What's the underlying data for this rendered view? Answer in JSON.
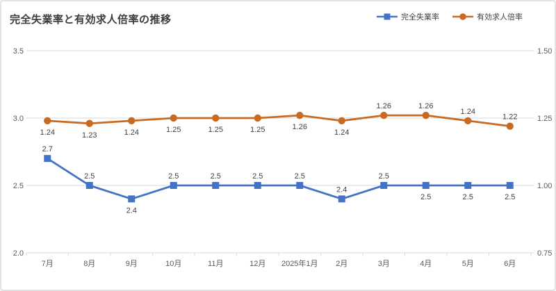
{
  "title": "完全失業率と有効求人倍率の推移",
  "legend": {
    "items": [
      {
        "label": "完全失業率",
        "marker": "square",
        "color": "#4472C4"
      },
      {
        "label": "有効求人倍率",
        "marker": "circle",
        "color": "#C96A22"
      }
    ]
  },
  "chart_data": {
    "type": "line",
    "title": "完全失業率と有効求人倍率の推移",
    "categories": [
      "7月",
      "8月",
      "9月",
      "10月",
      "11月",
      "12月",
      "2025年1月",
      "2月",
      "3月",
      "4月",
      "5月",
      "6月"
    ],
    "series": [
      {
        "name": "完全失業率",
        "axis": "left",
        "color": "#4472C4",
        "marker": "square",
        "values": [
          2.7,
          2.5,
          2.4,
          2.5,
          2.5,
          2.5,
          2.5,
          2.4,
          2.5,
          2.5,
          2.5,
          2.5
        ],
        "labels": [
          "2.7",
          "2.5",
          "2.4",
          "2.5",
          "2.5",
          "2.5",
          "2.5",
          "2.4",
          "2.5",
          "2.5",
          "2.5",
          "2.5"
        ],
        "label_positions": [
          "above",
          "above",
          "below",
          "above",
          "above",
          "above",
          "above",
          "above",
          "above",
          "below",
          "below",
          "below"
        ]
      },
      {
        "name": "有効求人倍率",
        "axis": "right",
        "color": "#C96A22",
        "marker": "circle",
        "values": [
          1.24,
          1.23,
          1.24,
          1.25,
          1.25,
          1.25,
          1.26,
          1.24,
          1.26,
          1.26,
          1.24,
          1.22
        ],
        "labels": [
          "1.24",
          "1.23",
          "1.24",
          "1.25",
          "1.25",
          "1.25",
          "1.26",
          "1.24",
          "1.26",
          "1.26",
          "1.24",
          "1.22"
        ],
        "label_positions": [
          "below",
          "below",
          "below",
          "below",
          "below",
          "below",
          "below",
          "below",
          "above",
          "above",
          "above",
          "above"
        ]
      }
    ],
    "left_axis": {
      "ticks": [
        "3.5",
        "3.0",
        "2.5",
        "2.0"
      ],
      "min": 2.0,
      "max": 3.5
    },
    "right_axis": {
      "ticks": [
        "1.50",
        "1.25",
        "1.00",
        "0.75"
      ],
      "min": 0.75,
      "max": 1.5
    },
    "grid": true,
    "legend_position": "top-right"
  },
  "colors": {
    "grid": "#D9D9D9",
    "axis_text": "#595959",
    "data_label": "#404040",
    "title_text": "#3C3C3C",
    "card_border": "#E2E2E2",
    "background": "#FFFFFF"
  }
}
